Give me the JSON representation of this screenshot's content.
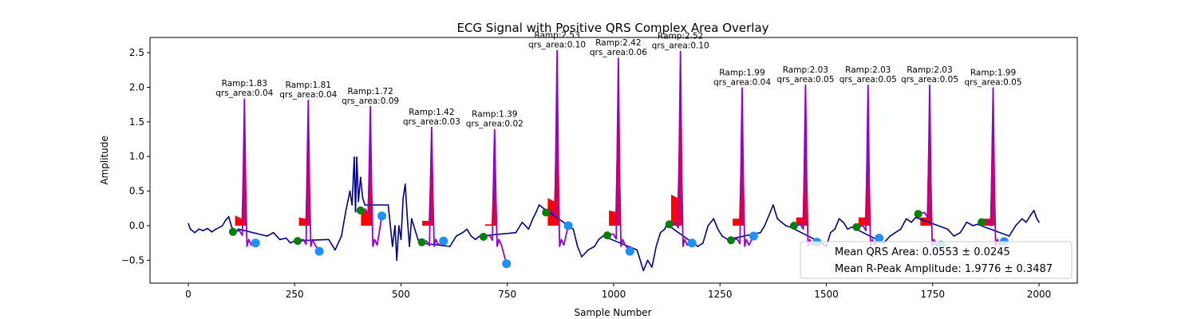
{
  "chart_data": {
    "type": "line",
    "title": "ECG Signal with Positive QRS Complex Area Overlay",
    "xlabel": "Sample Number",
    "ylabel": "Amplitude",
    "xlim": [
      -90,
      2090
    ],
    "ylim": [
      -0.83,
      2.72
    ],
    "xticks": [
      0,
      250,
      500,
      750,
      1000,
      1250,
      1500,
      1750,
      2000
    ],
    "yticks": [
      -0.5,
      0.0,
      0.5,
      1.0,
      1.5,
      2.0,
      2.5
    ],
    "grid": false,
    "colors": {
      "signal": "#00008b",
      "qrs_segment": "#9400d3",
      "qrs_area_fill": "#ff0000",
      "onset_marker": "#008000",
      "offset_marker": "#1e90ff"
    },
    "beats": [
      {
        "r_x": 132,
        "r_amp": 1.83,
        "qrs_area": 0.04,
        "area_start": 0.15,
        "area_pre": 0.1,
        "onset_x": 105,
        "onset_y": -0.09,
        "offset_x": 158,
        "offset_y": -0.25,
        "label_ramp": "Ramp:1.83",
        "label_area": "qrs_area:0.04"
      },
      {
        "r_x": 282,
        "r_amp": 1.81,
        "qrs_area": 0.04,
        "area_start": 0.12,
        "area_pre": 0.1,
        "onset_x": 257,
        "onset_y": -0.22,
        "offset_x": 308,
        "offset_y": -0.37,
        "label_ramp": "Ramp:1.81",
        "label_area": "qrs_area:0.04"
      },
      {
        "r_x": 428,
        "r_amp": 1.72,
        "qrs_area": 0.09,
        "area_start": 0.25,
        "area_pre": 0.2,
        "onset_x": 405,
        "onset_y": 0.22,
        "offset_x": 455,
        "offset_y": 0.14,
        "label_ramp": "Ramp:1.72",
        "label_area": "qrs_area:0.09"
      },
      {
        "r_x": 572,
        "r_amp": 1.42,
        "qrs_area": 0.03,
        "area_start": 0.07,
        "area_pre": 0.07,
        "onset_x": 549,
        "onset_y": -0.24,
        "offset_x": 600,
        "offset_y": -0.22,
        "label_ramp": "Ramp:1.42",
        "label_area": "qrs_area:0.03"
      },
      {
        "r_x": 720,
        "r_amp": 1.39,
        "qrs_area": 0.02,
        "area_start": 0.02,
        "area_pre": 0.02,
        "onset_x": 694,
        "onset_y": -0.16,
        "offset_x": 748,
        "offset_y": -0.55,
        "label_ramp": "Ramp:1.39",
        "label_area": "qrs_area:0.02"
      },
      {
        "r_x": 867,
        "r_amp": 2.53,
        "qrs_area": 0.1,
        "area_start": 0.4,
        "area_pre": 0.35,
        "onset_x": 841,
        "onset_y": 0.19,
        "offset_x": 893,
        "offset_y": 0.0,
        "label_ramp": "Ramp:2.53",
        "label_area": "qrs_area:0.10"
      },
      {
        "r_x": 1011,
        "r_amp": 2.42,
        "qrs_area": 0.06,
        "area_start": 0.22,
        "area_pre": 0.2,
        "onset_x": 985,
        "onset_y": -0.14,
        "offset_x": 1038,
        "offset_y": -0.37,
        "label_ramp": "Ramp:2.42",
        "label_area": "qrs_area:0.06"
      },
      {
        "r_x": 1157,
        "r_amp": 2.52,
        "qrs_area": 0.1,
        "area_start": 0.45,
        "area_pre": 0.4,
        "onset_x": 1131,
        "onset_y": 0.02,
        "offset_x": 1184,
        "offset_y": -0.25,
        "label_ramp": "Ramp:2.52",
        "label_area": "qrs_area:0.10"
      },
      {
        "r_x": 1302,
        "r_amp": 1.99,
        "qrs_area": 0.04,
        "area_start": 0.1,
        "area_pre": 0.1,
        "onset_x": 1276,
        "onset_y": -0.21,
        "offset_x": 1329,
        "offset_y": -0.15,
        "label_ramp": "Ramp:1.99",
        "label_area": "qrs_area:0.04"
      },
      {
        "r_x": 1451,
        "r_amp": 2.03,
        "qrs_area": 0.05,
        "area_start": 0.12,
        "area_pre": 0.12,
        "onset_x": 1424,
        "onset_y": 0.0,
        "offset_x": 1478,
        "offset_y": -0.24,
        "label_ramp": "Ramp:2.03",
        "label_area": "qrs_area:0.05"
      },
      {
        "r_x": 1598,
        "r_amp": 2.03,
        "qrs_area": 0.05,
        "area_start": 0.12,
        "area_pre": 0.12,
        "onset_x": 1571,
        "onset_y": -0.02,
        "offset_x": 1624,
        "offset_y": -0.18,
        "label_ramp": "Ramp:2.03",
        "label_area": "qrs_area:0.05"
      },
      {
        "r_x": 1743,
        "r_amp": 2.03,
        "qrs_area": 0.05,
        "area_start": 0.12,
        "area_pre": 0.12,
        "onset_x": 1716,
        "onset_y": 0.17,
        "offset_x": 1770,
        "offset_y": -0.28,
        "label_ramp": "Ramp:2.03",
        "label_area": "qrs_area:0.05"
      },
      {
        "r_x": 1892,
        "r_amp": 1.99,
        "qrs_area": 0.05,
        "area_start": 0.1,
        "area_pre": 0.1,
        "onset_x": 1865,
        "onset_y": 0.05,
        "offset_x": 1918,
        "offset_y": -0.23,
        "label_ramp": "Ramp:1.99",
        "label_area": "qrs_area:0.05"
      }
    ],
    "signal_anchors": [
      [
        0,
        0.03
      ],
      [
        5,
        -0.05
      ],
      [
        15,
        -0.1
      ],
      [
        25,
        -0.05
      ],
      [
        35,
        -0.07
      ],
      [
        45,
        -0.04
      ],
      [
        55,
        -0.09
      ],
      [
        65,
        -0.05
      ],
      [
        75,
        -0.02
      ],
      [
        80,
        0.0
      ],
      [
        88,
        0.08
      ],
      [
        95,
        0.13
      ],
      [
        102,
        -0.02
      ],
      [
        110,
        -0.1
      ],
      [
        118,
        -0.05
      ],
      [
        185,
        -0.15
      ],
      [
        200,
        -0.1
      ],
      [
        215,
        -0.2
      ],
      [
        230,
        -0.18
      ],
      [
        240,
        -0.25
      ],
      [
        250,
        -0.22
      ],
      [
        330,
        -0.2
      ],
      [
        345,
        -0.35
      ],
      [
        360,
        -0.15
      ],
      [
        370,
        0.2
      ],
      [
        380,
        0.5
      ],
      [
        385,
        0.3
      ],
      [
        390,
        0.99
      ],
      [
        393,
        0.2
      ],
      [
        396,
        0.99
      ],
      [
        400,
        0.35
      ],
      [
        405,
        0.7
      ],
      [
        410,
        0.4
      ],
      [
        415,
        0.3
      ],
      [
        470,
        0.3
      ],
      [
        480,
        -0.3
      ],
      [
        486,
        0.0
      ],
      [
        490,
        -0.5
      ],
      [
        495,
        0.0
      ],
      [
        500,
        -0.2
      ],
      [
        505,
        0.4
      ],
      [
        510,
        0.6
      ],
      [
        515,
        0.1
      ],
      [
        520,
        -0.3
      ],
      [
        525,
        0.1
      ],
      [
        530,
        0.0
      ],
      [
        540,
        -0.2
      ],
      [
        545,
        -0.25
      ],
      [
        615,
        -0.3
      ],
      [
        630,
        -0.15
      ],
      [
        645,
        -0.1
      ],
      [
        655,
        -0.05
      ],
      [
        665,
        -0.15
      ],
      [
        675,
        -0.2
      ],
      [
        685,
        -0.15
      ],
      [
        770,
        -0.1
      ],
      [
        785,
        0.05
      ],
      [
        800,
        -0.05
      ],
      [
        810,
        0.1
      ],
      [
        818,
        0.2
      ],
      [
        825,
        0.3
      ],
      [
        835,
        0.25
      ],
      [
        905,
        -0.05
      ],
      [
        915,
        -0.3
      ],
      [
        925,
        -0.45
      ],
      [
        940,
        -0.35
      ],
      [
        955,
        -0.3
      ],
      [
        965,
        -0.2
      ],
      [
        975,
        -0.15
      ],
      [
        1055,
        -0.35
      ],
      [
        1070,
        -0.65
      ],
      [
        1080,
        -0.5
      ],
      [
        1090,
        -0.6
      ],
      [
        1100,
        -0.3
      ],
      [
        1110,
        -0.1
      ],
      [
        1120,
        -0.05
      ],
      [
        1125,
        0.02
      ],
      [
        1198,
        -0.3
      ],
      [
        1210,
        -0.25
      ],
      [
        1222,
        0.0
      ],
      [
        1235,
        0.1
      ],
      [
        1245,
        -0.05
      ],
      [
        1255,
        -0.15
      ],
      [
        1268,
        -0.2
      ],
      [
        1345,
        -0.1
      ],
      [
        1355,
        0.0
      ],
      [
        1365,
        0.15
      ],
      [
        1375,
        0.3
      ],
      [
        1385,
        0.1
      ],
      [
        1395,
        0.05
      ],
      [
        1405,
        0.0
      ],
      [
        1415,
        -0.02
      ],
      [
        1490,
        -0.25
      ],
      [
        1500,
        -0.3
      ],
      [
        1510,
        -0.1
      ],
      [
        1520,
        -0.05
      ],
      [
        1530,
        0.1
      ],
      [
        1540,
        0.05
      ],
      [
        1550,
        -0.05
      ],
      [
        1560,
        -0.02
      ],
      [
        1635,
        -0.25
      ],
      [
        1650,
        -0.15
      ],
      [
        1662,
        -0.1
      ],
      [
        1675,
        -0.05
      ],
      [
        1688,
        0.1
      ],
      [
        1700,
        0.05
      ],
      [
        1710,
        0.12
      ],
      [
        1785,
        -0.05
      ],
      [
        1800,
        -0.15
      ],
      [
        1815,
        -0.1
      ],
      [
        1830,
        0.05
      ],
      [
        1845,
        0.0
      ],
      [
        1855,
        0.02
      ],
      [
        1930,
        -0.15
      ],
      [
        1945,
        0.0
      ],
      [
        1960,
        0.1
      ],
      [
        1970,
        0.05
      ],
      [
        1980,
        0.15
      ],
      [
        1988,
        0.22
      ],
      [
        1995,
        0.1
      ],
      [
        2000,
        0.05
      ]
    ],
    "legend": {
      "placement": "lower-right",
      "entries": [
        "Mean QRS Area: 0.0553 ± 0.0245",
        "Mean R-Peak Amplitude: 1.9776 ± 0.3487"
      ]
    }
  }
}
